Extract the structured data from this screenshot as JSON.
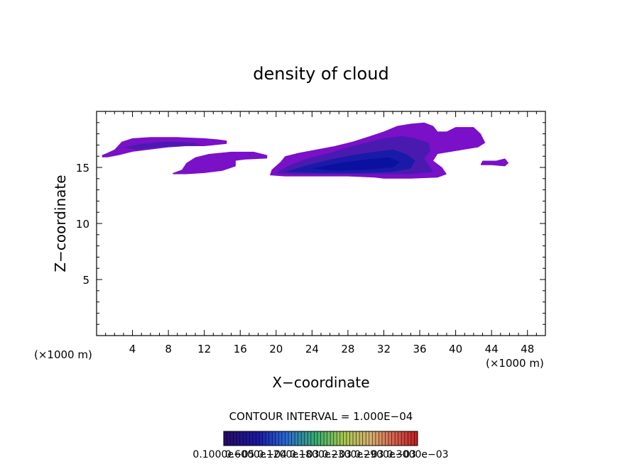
{
  "chart_data": {
    "type": "heatmap",
    "title": "density of cloud",
    "xlabel": "X−coordinate",
    "ylabel": "Z−coordinate",
    "x_unit_left": "(×1000 m)",
    "x_unit_right": "(×1000 m)",
    "xlim": [
      0,
      50
    ],
    "ylim": [
      0,
      20
    ],
    "x_ticks": [
      4,
      8,
      12,
      16,
      20,
      24,
      28,
      32,
      36,
      40,
      44,
      48
    ],
    "y_ticks": [
      5,
      10,
      15
    ],
    "grid": false,
    "contour_interval_label": "CONTOUR INTERVAL = 1.000E−04",
    "colorbar_labels": [
      "0.1000e−05",
      "0.6000e−04",
      "0.1200e−03",
      "0.1800e−03",
      "0.2300e−03",
      "0.2900e−03",
      "0.3000e−03"
    ],
    "colors": {
      "outer": "#7a10c8",
      "mid": "#4a1ab0",
      "core": "#1a1aa8",
      "deep_core": "#0a10a0"
    },
    "cloud_regions": [
      {
        "level": "outer",
        "points": [
          [
            0.6,
            16.1
          ],
          [
            1.2,
            16.3
          ],
          [
            2.0,
            16.6
          ],
          [
            2.8,
            17.3
          ],
          [
            4.0,
            17.6
          ],
          [
            6.0,
            17.7
          ],
          [
            9.0,
            17.7
          ],
          [
            12.0,
            17.6
          ],
          [
            13.5,
            17.5
          ],
          [
            14.5,
            17.4
          ],
          [
            14.5,
            17.1
          ],
          [
            12.0,
            16.9
          ],
          [
            10.0,
            16.9
          ],
          [
            8.0,
            16.8
          ],
          [
            6.0,
            16.6
          ],
          [
            4.0,
            16.4
          ],
          [
            2.5,
            16.1
          ],
          [
            1.2,
            15.9
          ],
          [
            0.6,
            15.9
          ]
        ]
      },
      {
        "level": "mid",
        "points": [
          [
            3.0,
            16.8
          ],
          [
            5.0,
            17.1
          ],
          [
            8.0,
            17.3
          ],
          [
            11.0,
            17.2
          ],
          [
            11.5,
            17.0
          ],
          [
            9.0,
            16.9
          ],
          [
            6.5,
            16.8
          ],
          [
            4.5,
            16.6
          ]
        ]
      },
      {
        "level": "outer",
        "points": [
          [
            8.5,
            14.5
          ],
          [
            9.5,
            14.8
          ],
          [
            10.0,
            15.4
          ],
          [
            11.0,
            15.9
          ],
          [
            12.5,
            16.2
          ],
          [
            15.0,
            16.4
          ],
          [
            17.5,
            16.4
          ],
          [
            19.0,
            16.1
          ],
          [
            19.0,
            15.8
          ],
          [
            16.5,
            15.7
          ],
          [
            15.5,
            15.6
          ],
          [
            15.5,
            15.1
          ],
          [
            14.0,
            14.7
          ],
          [
            12.0,
            14.5
          ],
          [
            10.0,
            14.4
          ],
          [
            8.5,
            14.4
          ]
        ]
      },
      {
        "level": "outer",
        "points": [
          [
            19.3,
            14.3
          ],
          [
            19.5,
            14.8
          ],
          [
            20.5,
            15.5
          ],
          [
            21.0,
            16.0
          ],
          [
            22.5,
            16.3
          ],
          [
            24.5,
            16.6
          ],
          [
            26.5,
            16.9
          ],
          [
            28.5,
            17.3
          ],
          [
            30.5,
            17.8
          ],
          [
            32.0,
            18.2
          ],
          [
            33.5,
            18.7
          ],
          [
            35.0,
            18.9
          ],
          [
            36.5,
            19.0
          ],
          [
            37.5,
            18.7
          ],
          [
            38.0,
            18.2
          ],
          [
            39.0,
            18.2
          ],
          [
            40.0,
            18.6
          ],
          [
            42.0,
            18.6
          ],
          [
            42.8,
            18.0
          ],
          [
            43.3,
            17.2
          ],
          [
            42.5,
            16.8
          ],
          [
            41.0,
            16.6
          ],
          [
            39.5,
            16.4
          ],
          [
            38.0,
            16.2
          ],
          [
            37.5,
            15.6
          ],
          [
            38.5,
            15.0
          ],
          [
            39.0,
            14.4
          ],
          [
            38.0,
            14.1
          ],
          [
            35.0,
            14.0
          ],
          [
            32.0,
            14.0
          ],
          [
            31.0,
            14.1
          ],
          [
            28.0,
            14.2
          ],
          [
            24.0,
            14.2
          ],
          [
            21.0,
            14.2
          ]
        ]
      },
      {
        "level": "mid",
        "points": [
          [
            20.0,
            14.5
          ],
          [
            21.5,
            15.2
          ],
          [
            23.5,
            15.8
          ],
          [
            26.0,
            16.3
          ],
          [
            28.0,
            16.8
          ],
          [
            30.0,
            17.2
          ],
          [
            32.0,
            17.6
          ],
          [
            34.0,
            17.8
          ],
          [
            35.5,
            17.6
          ],
          [
            37.0,
            17.2
          ],
          [
            37.2,
            16.5
          ],
          [
            36.5,
            15.8
          ],
          [
            37.0,
            15.2
          ],
          [
            37.5,
            14.6
          ],
          [
            35.0,
            14.4
          ],
          [
            31.0,
            14.4
          ],
          [
            26.0,
            14.4
          ],
          [
            22.0,
            14.4
          ]
        ]
      },
      {
        "level": "core",
        "points": [
          [
            21.0,
            14.6
          ],
          [
            23.5,
            15.2
          ],
          [
            26.0,
            15.7
          ],
          [
            28.5,
            16.1
          ],
          [
            31.0,
            16.4
          ],
          [
            33.0,
            16.6
          ],
          [
            34.5,
            16.2
          ],
          [
            35.5,
            15.6
          ],
          [
            35.0,
            14.9
          ],
          [
            33.0,
            14.6
          ],
          [
            29.0,
            14.5
          ],
          [
            25.0,
            14.5
          ]
        ]
      },
      {
        "level": "deep_core",
        "points": [
          [
            24.0,
            14.9
          ],
          [
            27.0,
            15.4
          ],
          [
            30.0,
            15.7
          ],
          [
            32.5,
            15.9
          ],
          [
            33.8,
            15.5
          ],
          [
            33.0,
            15.0
          ],
          [
            30.0,
            14.8
          ],
          [
            26.5,
            14.7
          ]
        ]
      },
      {
        "level": "outer",
        "points": [
          [
            42.8,
            15.3
          ],
          [
            43.0,
            15.6
          ],
          [
            44.5,
            15.6
          ],
          [
            45.5,
            15.8
          ],
          [
            45.9,
            15.4
          ],
          [
            45.5,
            15.1
          ],
          [
            44.0,
            15.2
          ],
          [
            42.8,
            15.2
          ]
        ]
      }
    ]
  }
}
